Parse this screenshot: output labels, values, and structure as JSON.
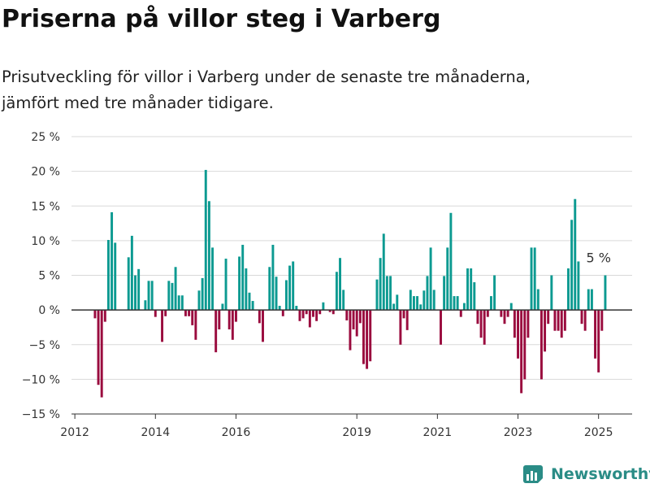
{
  "title": "Priserna på villor steg i Varberg",
  "subtitle_lines": [
    "Prisutveckling för villor i Varberg under de senaste tre månaderna,",
    "jämfört med tre månader tidigare."
  ],
  "brand": "Newsworthy",
  "colors": {
    "positive": "#0c9a91",
    "negative": "#9a0b3e",
    "grid": "#d9d9d9",
    "axis": "#333333",
    "brand": "#2a8c86"
  },
  "chart_data": {
    "type": "bar",
    "x_start": "2012-07",
    "x_step": "month",
    "xlim": [
      "2011-12",
      "2025-11"
    ],
    "ylim": [
      -15,
      25
    ],
    "yticks": [
      -15,
      -10,
      -5,
      0,
      5,
      10,
      15,
      20,
      25
    ],
    "ytick_labels": [
      "−15 %",
      "−10 %",
      "−5 %",
      "0 %",
      "5 %",
      "10 %",
      "15 %",
      "20 %",
      "25 %"
    ],
    "xticks": [
      "2012-01",
      "2014-01",
      "2016-01",
      "2019-01",
      "2021-01",
      "2023-01",
      "2025-01"
    ],
    "xtick_labels": [
      "2012",
      "2014",
      "2016",
      "2019",
      "2021",
      "2023",
      "2025"
    ],
    "grid": true,
    "annotation": {
      "text": "5 %",
      "x": "2025-01",
      "value": 5
    },
    "values": [
      -1.2,
      -10.8,
      -12.6,
      -1.7,
      10.1,
      14.1,
      9.7,
      0,
      0,
      0,
      7.6,
      10.7,
      5.0,
      5.9,
      0,
      1.4,
      4.2,
      4.2,
      -1.0,
      0,
      -4.6,
      -0.9,
      4.2,
      3.9,
      6.2,
      2.1,
      2.1,
      -0.9,
      -0.9,
      -2.2,
      -4.3,
      2.8,
      4.6,
      20.2,
      15.7,
      9.0,
      -6.1,
      -2.8,
      0.9,
      7.4,
      -2.8,
      -4.3,
      -1.7,
      7.7,
      9.4,
      6.0,
      2.5,
      1.3,
      0,
      -1.9,
      -4.6,
      0,
      6.2,
      9.4,
      4.8,
      0.6,
      -0.9,
      4.3,
      6.4,
      7.0,
      0.6,
      -1.6,
      -1.2,
      -0.6,
      -2.5,
      -1.0,
      -1.6,
      -0.6,
      1.1,
      0,
      -0.3,
      -0.6,
      5.5,
      7.5,
      2.9,
      -1.5,
      -5.8,
      -2.8,
      -3.8,
      -1.9,
      -7.8,
      -8.5,
      -7.4,
      0,
      4.4,
      7.5,
      11.0,
      4.9,
      4.9,
      0.9,
      2.2,
      -5.0,
      -1.2,
      -2.9,
      2.9,
      2.0,
      2.0,
      0.8,
      2.8,
      4.9,
      9.0,
      2.9,
      0,
      -5.0,
      4.9,
      9.0,
      14.0,
      2.0,
      2.0,
      -1.0,
      1.0,
      6.0,
      6.0,
      4.0,
      -2.0,
      -4.0,
      -5.0,
      -1.0,
      2.0,
      5.0,
      0,
      -1.0,
      -2.0,
      -1.0,
      1.0,
      -4.0,
      -7.0,
      -12.0,
      -10.0,
      -4.0,
      9.0,
      9.0,
      3.0,
      -10.0,
      -6.0,
      -2.0,
      5.0,
      -3.0,
      -3.0,
      -4.0,
      -3.0,
      6.0,
      13.0,
      16.0,
      7.0,
      -2.0,
      -3.0,
      3.0,
      3.0,
      -7.0,
      -9.0,
      -3.0,
      5.0
    ]
  }
}
